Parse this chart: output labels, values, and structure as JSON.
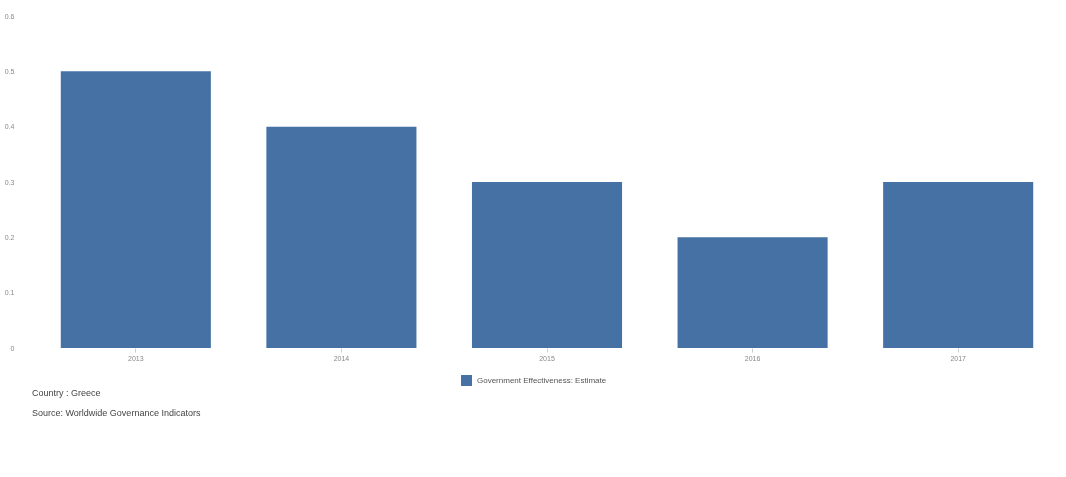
{
  "chart_data": {
    "type": "bar",
    "categories": [
      "2013",
      "2014",
      "2015",
      "2016",
      "2017"
    ],
    "series": [
      {
        "name": "Government Effectiveness: Estimate",
        "color": "#4571a5",
        "values": [
          0.5,
          0.4,
          0.3,
          0.2,
          0.3
        ]
      }
    ],
    "ylim": [
      0,
      0.6
    ],
    "yticks": [
      0,
      0.1,
      0.2,
      0.3,
      0.4,
      0.5,
      0.6
    ],
    "grid": false,
    "legend": "bottom",
    "annotations": [
      "Country : Greece",
      "Source: Worldwide Governance Indicators"
    ]
  }
}
